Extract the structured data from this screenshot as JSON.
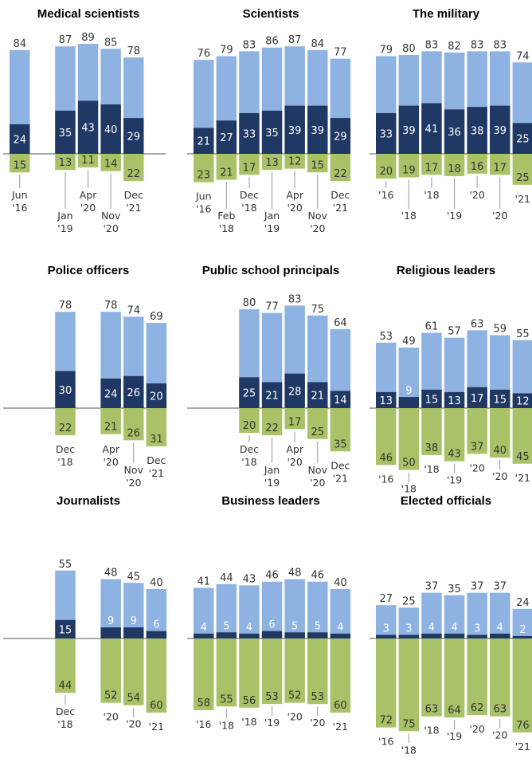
{
  "colors": {
    "top": "#8EB3E2",
    "mid": "#1F3864",
    "bottom": "#A9C267",
    "axis": "#555555",
    "text": "#333333",
    "inner_text": "#ffffff"
  },
  "chart_data": [
    {
      "type": "bar",
      "title": "Medical scientists",
      "bars": [
        {
          "slot": 0,
          "total": 84,
          "dark": 24,
          "neg": 15
        },
        {
          "slot": 2,
          "total": 87,
          "dark": 35,
          "neg": 13
        },
        {
          "slot": 3,
          "total": 89,
          "dark": 43,
          "neg": 11
        },
        {
          "slot": 4,
          "total": 85,
          "dark": 40,
          "neg": 14
        },
        {
          "slot": 5,
          "total": 78,
          "dark": 29,
          "neg": 22
        }
      ],
      "x_labels": [
        {
          "slot": 0,
          "lines": [
            "Jun",
            "'16"
          ],
          "low": false
        },
        {
          "slot": 2,
          "lines": [
            "Jan",
            "'19"
          ],
          "low": true
        },
        {
          "slot": 3,
          "lines": [
            "Apr",
            "'20"
          ],
          "low": false
        },
        {
          "slot": 4,
          "lines": [
            "Nov",
            "'20"
          ],
          "low": true
        },
        {
          "slot": 5,
          "lines": [
            "Dec",
            "'21"
          ],
          "low": false
        }
      ]
    },
    {
      "type": "bar",
      "title": "Scientists",
      "bars": [
        {
          "slot": 0,
          "total": 76,
          "dark": 21,
          "neg": 23
        },
        {
          "slot": 1,
          "total": 79,
          "dark": 27,
          "neg": 21
        },
        {
          "slot": 2,
          "total": 83,
          "dark": 33,
          "neg": 17
        },
        {
          "slot": 3,
          "total": 86,
          "dark": 35,
          "neg": 13
        },
        {
          "slot": 4,
          "total": 87,
          "dark": 39,
          "neg": 12
        },
        {
          "slot": 5,
          "total": 84,
          "dark": 39,
          "neg": 15
        },
        {
          "slot": 6,
          "total": 77,
          "dark": 29,
          "neg": 22
        }
      ],
      "x_labels": [
        {
          "slot": 0,
          "lines": [
            "Jun",
            "'16"
          ],
          "low": false
        },
        {
          "slot": 1,
          "lines": [
            "Feb",
            "'18"
          ],
          "low": true
        },
        {
          "slot": 2,
          "lines": [
            "Dec",
            "'18"
          ],
          "low": false
        },
        {
          "slot": 3,
          "lines": [
            "Jan",
            "'19"
          ],
          "low": true
        },
        {
          "slot": 4,
          "lines": [
            "Apr",
            "'20"
          ],
          "low": false
        },
        {
          "slot": 5,
          "lines": [
            "Nov",
            "'20"
          ],
          "low": true
        },
        {
          "slot": 6,
          "lines": [
            "Dec",
            "'21"
          ],
          "low": false
        }
      ]
    },
    {
      "type": "bar",
      "title": "The military",
      "bars": [
        {
          "slot": 0,
          "total": 79,
          "dark": 33,
          "neg": 20
        },
        {
          "slot": 1,
          "total": 80,
          "dark": 39,
          "neg": 19
        },
        {
          "slot": 2,
          "total": 83,
          "dark": 41,
          "neg": 17
        },
        {
          "slot": 3,
          "total": 82,
          "dark": 36,
          "neg": 18
        },
        {
          "slot": 4,
          "total": 83,
          "dark": 38,
          "neg": 16
        },
        {
          "slot": 5,
          "total": 83,
          "dark": 39,
          "neg": 17
        },
        {
          "slot": 6,
          "total": 74,
          "dark": 25,
          "neg": 25
        }
      ],
      "x_labels": [
        {
          "slot": 0,
          "lines": [
            "'16"
          ],
          "low": false
        },
        {
          "slot": 1,
          "lines": [
            "'18"
          ],
          "low": true
        },
        {
          "slot": 2,
          "lines": [
            "'18"
          ],
          "low": false
        },
        {
          "slot": 3,
          "lines": [
            "'19"
          ],
          "low": true
        },
        {
          "slot": 4,
          "lines": [
            "'20"
          ],
          "low": false
        },
        {
          "slot": 5,
          "lines": [
            "'20"
          ],
          "low": true
        },
        {
          "slot": 6,
          "lines": [
            "'21"
          ],
          "low": false
        }
      ]
    },
    {
      "type": "bar",
      "title": "Police officers",
      "bars": [
        {
          "slot": 2,
          "total": 78,
          "dark": 30,
          "neg": 22
        },
        {
          "slot": 4,
          "total": 78,
          "dark": 24,
          "neg": 21
        },
        {
          "slot": 5,
          "total": 74,
          "dark": 26,
          "neg": 26
        },
        {
          "slot": 6,
          "total": 69,
          "dark": 20,
          "neg": 31
        }
      ],
      "x_labels": [
        {
          "slot": 2,
          "lines": [
            "Dec",
            "'18"
          ],
          "low": false
        },
        {
          "slot": 4,
          "lines": [
            "Apr",
            "'20"
          ],
          "low": false
        },
        {
          "slot": 5,
          "lines": [
            "Nov",
            "'20"
          ],
          "low": true
        },
        {
          "slot": 6,
          "lines": [
            "Dec",
            "'21"
          ],
          "low": false
        }
      ]
    },
    {
      "type": "bar",
      "title": "Public school principals",
      "bars": [
        {
          "slot": 2,
          "total": 80,
          "dark": 25,
          "neg": 20
        },
        {
          "slot": 3,
          "total": 77,
          "dark": 21,
          "neg": 22
        },
        {
          "slot": 4,
          "total": 83,
          "dark": 28,
          "neg": 17
        },
        {
          "slot": 5,
          "total": 75,
          "dark": 21,
          "neg": 25
        },
        {
          "slot": 6,
          "total": 64,
          "dark": 14,
          "neg": 35
        }
      ],
      "x_labels": [
        {
          "slot": 2,
          "lines": [
            "Dec",
            "'18"
          ],
          "low": false
        },
        {
          "slot": 3,
          "lines": [
            "Jan",
            "'19"
          ],
          "low": true
        },
        {
          "slot": 4,
          "lines": [
            "Apr",
            "'20"
          ],
          "low": false
        },
        {
          "slot": 5,
          "lines": [
            "Nov",
            "'20"
          ],
          "low": true
        },
        {
          "slot": 6,
          "lines": [
            "Dec",
            "'21"
          ],
          "low": false
        }
      ]
    },
    {
      "type": "bar",
      "title": "Religious leaders",
      "bars": [
        {
          "slot": 0,
          "total": 53,
          "dark": 13,
          "neg": 46
        },
        {
          "slot": 1,
          "total": 49,
          "dark": 9,
          "neg": 50
        },
        {
          "slot": 2,
          "total": 61,
          "dark": 15,
          "neg": 38
        },
        {
          "slot": 3,
          "total": 57,
          "dark": 13,
          "neg": 43
        },
        {
          "slot": 4,
          "total": 63,
          "dark": 17,
          "neg": 37
        },
        {
          "slot": 5,
          "total": 59,
          "dark": 15,
          "neg": 40
        },
        {
          "slot": 6,
          "total": 55,
          "dark": 12,
          "neg": 45
        }
      ],
      "x_labels": [
        {
          "slot": 0,
          "lines": [
            "'16"
          ],
          "low": false
        },
        {
          "slot": 1,
          "lines": [
            "'18"
          ],
          "low": true
        },
        {
          "slot": 2,
          "lines": [
            "'18"
          ],
          "low": false
        },
        {
          "slot": 3,
          "lines": [
            "'19"
          ],
          "low": true
        },
        {
          "slot": 4,
          "lines": [
            "'20"
          ],
          "low": false
        },
        {
          "slot": 5,
          "lines": [
            "'20"
          ],
          "low": true
        },
        {
          "slot": 6,
          "lines": [
            "'21"
          ],
          "low": false
        }
      ]
    },
    {
      "type": "bar",
      "title": "Journalists",
      "bars": [
        {
          "slot": 2,
          "total": 55,
          "dark": 15,
          "neg": 44
        },
        {
          "slot": 4,
          "total": 48,
          "dark": 9,
          "neg": 52
        },
        {
          "slot": 5,
          "total": 45,
          "dark": 9,
          "neg": 54
        },
        {
          "slot": 6,
          "total": 40,
          "dark": 6,
          "neg": 60
        }
      ],
      "x_labels": [
        {
          "slot": 2,
          "lines": [
            "Dec",
            "'18"
          ],
          "low": true
        },
        {
          "slot": 4,
          "lines": [
            "'20"
          ],
          "low": false
        },
        {
          "slot": 5,
          "lines": [
            "'20"
          ],
          "low": true
        },
        {
          "slot": 6,
          "lines": [
            "'21"
          ],
          "low": false
        }
      ]
    },
    {
      "type": "bar",
      "title": "Business leaders",
      "bars": [
        {
          "slot": 0,
          "total": 41,
          "dark": 4,
          "neg": 58
        },
        {
          "slot": 1,
          "total": 44,
          "dark": 5,
          "neg": 55
        },
        {
          "slot": 2,
          "total": 43,
          "dark": 4,
          "neg": 56
        },
        {
          "slot": 3,
          "total": 46,
          "dark": 6,
          "neg": 53
        },
        {
          "slot": 4,
          "total": 48,
          "dark": 5,
          "neg": 52
        },
        {
          "slot": 5,
          "total": 46,
          "dark": 5,
          "neg": 53
        },
        {
          "slot": 6,
          "total": 40,
          "dark": 4,
          "neg": 60
        }
      ],
      "x_labels": [
        {
          "slot": 0,
          "lines": [
            "'16"
          ],
          "low": false
        },
        {
          "slot": 1,
          "lines": [
            "'18"
          ],
          "low": true
        },
        {
          "slot": 2,
          "lines": [
            "'18"
          ],
          "low": false
        },
        {
          "slot": 3,
          "lines": [
            "'19"
          ],
          "low": true
        },
        {
          "slot": 4,
          "lines": [
            "'20"
          ],
          "low": false
        },
        {
          "slot": 5,
          "lines": [
            "'20"
          ],
          "low": true
        },
        {
          "slot": 6,
          "lines": [
            "'21"
          ],
          "low": false
        }
      ]
    },
    {
      "type": "bar",
      "title": "Elected officials",
      "bars": [
        {
          "slot": 0,
          "total": 27,
          "dark": 3,
          "neg": 72
        },
        {
          "slot": 1,
          "total": 25,
          "dark": 3,
          "neg": 75
        },
        {
          "slot": 2,
          "total": 37,
          "dark": 4,
          "neg": 63
        },
        {
          "slot": 3,
          "total": 35,
          "dark": 4,
          "neg": 64
        },
        {
          "slot": 4,
          "total": 37,
          "dark": 3,
          "neg": 62
        },
        {
          "slot": 5,
          "total": 37,
          "dark": 4,
          "neg": 63
        },
        {
          "slot": 6,
          "total": 24,
          "dark": 2,
          "neg": 76
        }
      ],
      "x_labels": [
        {
          "slot": 0,
          "lines": [
            "'16"
          ],
          "low": false
        },
        {
          "slot": 1,
          "lines": [
            "'18"
          ],
          "low": true
        },
        {
          "slot": 2,
          "lines": [
            "'18"
          ],
          "low": false
        },
        {
          "slot": 3,
          "lines": [
            "'19"
          ],
          "low": true
        },
        {
          "slot": 4,
          "lines": [
            "'20"
          ],
          "low": false
        },
        {
          "slot": 5,
          "lines": [
            "'20"
          ],
          "low": true
        },
        {
          "slot": 6,
          "lines": [
            "'21"
          ],
          "low": false
        }
      ]
    }
  ]
}
